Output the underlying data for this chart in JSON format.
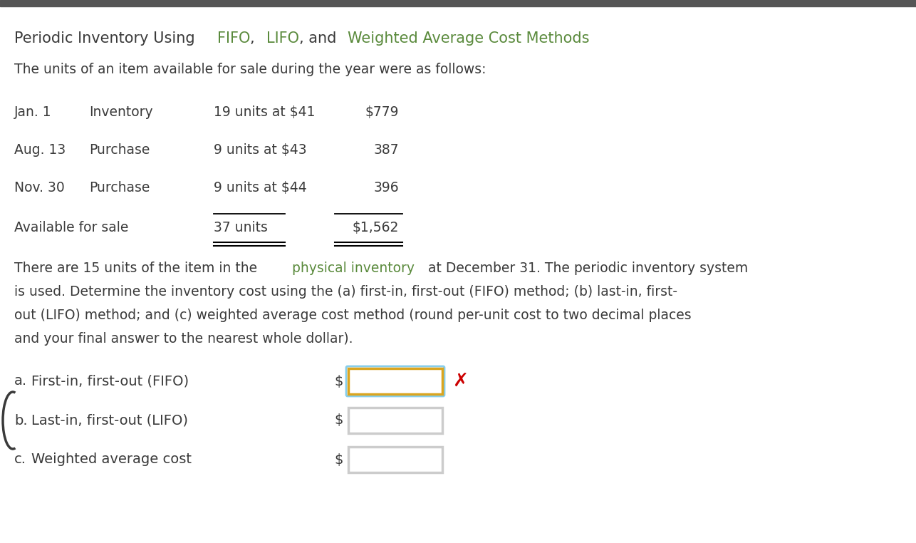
{
  "bg_color": "#ffffff",
  "top_bar_color": "#555555",
  "title_parts": [
    {
      "text": "Periodic Inventory Using ",
      "color": "#3a3a3a"
    },
    {
      "text": "FIFO",
      "color": "#5a8a3c"
    },
    {
      "text": ", ",
      "color": "#3a3a3a"
    },
    {
      "text": "LIFO",
      "color": "#5a8a3c"
    },
    {
      "text": ", and ",
      "color": "#3a3a3a"
    },
    {
      "text": "Weighted Average Cost Methods",
      "color": "#5a8a3c"
    }
  ],
  "green_color": "#5a8a3c",
  "black_color": "#3a3a3a",
  "subtitle": "The units of an item available for sale during the year were as follows:",
  "rows": [
    {
      "date": "Jan. 1",
      "type": "Inventory",
      "units_desc": "19 units at $41",
      "amount": "$779"
    },
    {
      "date": "Aug. 13",
      "type": "Purchase",
      "units_desc": "9 units at $43",
      "amount": "387"
    },
    {
      "date": "Nov. 30",
      "type": "Purchase",
      "units_desc": "9 units at $44",
      "amount": "396"
    }
  ],
  "total_row": {
    "label": "Available for sale",
    "units": "37 units",
    "amount": "$1,562"
  },
  "para_line1_before": "There are 15 units of the item in the ",
  "para_line1_highlight": "physical inventory",
  "para_line1_after": " at December 31. The periodic inventory system",
  "para_line2": "is used. Determine the inventory cost using the (a) first-in, first-out (FIFO) method; (b) last-in, first-",
  "para_line3": "out (LIFO) method; and (c) weighted average cost method (round per-unit cost to two decimal places",
  "para_line4": "and your final answer to the nearest whole dollar).",
  "answers": [
    {
      "label": "a.",
      "text": "First-in, first-out (FIFO)",
      "box_edge_color": "#DAA520",
      "box_edge_color2": "#87CEEB",
      "show_x": true
    },
    {
      "label": "b.",
      "text": "Last-in, first-out (LIFO)",
      "box_edge_color": "#cccccc",
      "box_edge_color2": null,
      "show_x": false
    },
    {
      "label": "c.",
      "text": "Weighted average cost",
      "box_edge_color": "#cccccc",
      "box_edge_color2": null,
      "show_x": false
    }
  ],
  "dollar_sign": "$",
  "x_color": "#cc0000",
  "font_name": "DejaVu Sans"
}
